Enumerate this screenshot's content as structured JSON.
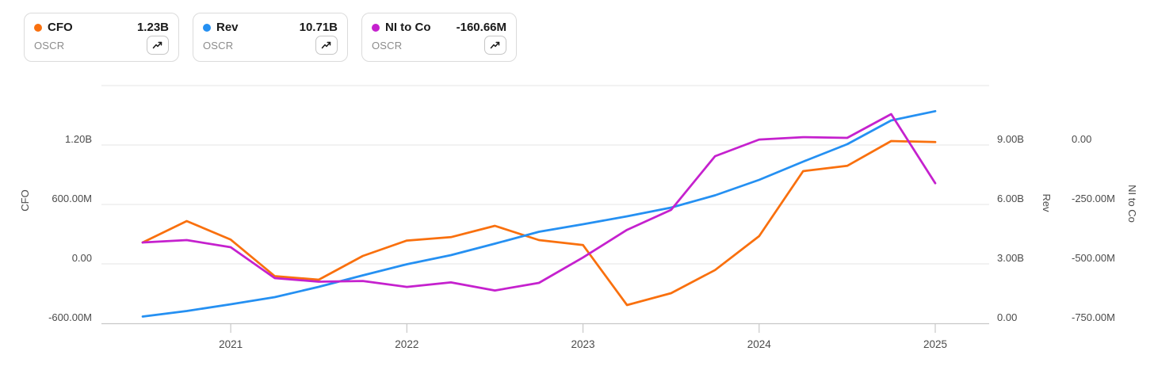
{
  "chart_data": {
    "type": "line",
    "x_tick_labels": [
      "2021",
      "2022",
      "2023",
      "2024",
      "2025"
    ],
    "year_tick_point_indices": [
      2,
      6,
      10,
      14,
      18
    ],
    "grid": "horizontal-only",
    "series": [
      {
        "name": "CFO",
        "ticker": "OSCR",
        "legend_value": "1.23B",
        "axis": "cfo",
        "unit": "M",
        "color": "#F9700E",
        "values": [
          216,
          432,
          245,
          -124,
          -160,
          80,
          235,
          270,
          384,
          240,
          190,
          -416,
          -296,
          -62,
          280,
          936,
          990,
          1240,
          1230
        ]
      },
      {
        "name": "Rev",
        "ticker": "OSCR",
        "legend_value": "10.71B",
        "axis": "rev",
        "unit": "B",
        "color": "#2590F2",
        "values": [
          0.34,
          0.62,
          0.96,
          1.32,
          1.84,
          2.42,
          2.98,
          3.44,
          4.02,
          4.62,
          5.0,
          5.4,
          5.84,
          6.46,
          7.24,
          8.16,
          9.04,
          10.24,
          10.71
        ]
      },
      {
        "name": "NI to Co",
        "ticker": "OSCR",
        "legend_value": "-160.66M",
        "axis": "ni",
        "unit": "M",
        "color": "#C521CE",
        "values": [
          -410,
          -400,
          -430,
          -560,
          -575,
          -572,
          -597,
          -578,
          -612,
          -580,
          -473,
          -357,
          -273,
          -47,
          23,
          33,
          30,
          130,
          -160.66
        ]
      }
    ],
    "axes": {
      "cfo": {
        "title": "CFO",
        "side": "left",
        "tick_labels": [
          "1.20B",
          "600.00M",
          "0.00",
          "-600.00M"
        ],
        "tick_values_m": [
          1200,
          600,
          0,
          -600
        ],
        "ylim_m": [
          -600,
          1800
        ]
      },
      "rev": {
        "title": "Rev",
        "side": "right",
        "tick_labels": [
          "9.00B",
          "6.00B",
          "3.00B",
          "0.00"
        ],
        "tick_values_b": [
          9,
          6,
          3,
          0
        ],
        "ylim_b": [
          0,
          12
        ]
      },
      "ni": {
        "title": "NI to Co",
        "side": "far-right",
        "tick_labels": [
          "0.00",
          "-250.00M",
          "-500.00M",
          "-750.00M"
        ],
        "tick_values_m": [
          0,
          -250,
          -500,
          -750
        ],
        "ylim_m": [
          -750,
          250
        ]
      }
    },
    "colors": {
      "gridline": "#E5E5E5",
      "axis_line": "#C8C8C8",
      "tick_text": "#4B4B4B"
    }
  }
}
